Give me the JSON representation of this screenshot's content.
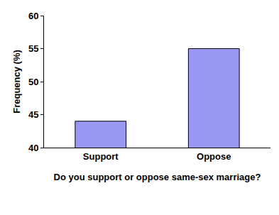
{
  "chart_data": {
    "type": "bar",
    "x_label": "Do you support or oppose same-sex marriage?",
    "y_label": "Frequency (%)",
    "categories": [
      "Support",
      "Oppose"
    ],
    "values": [
      44,
      55
    ],
    "color": "#9999f5",
    "ylim": [
      40,
      60
    ],
    "yticks": [
      40,
      45,
      50,
      55,
      60
    ],
    "grid": false
  }
}
